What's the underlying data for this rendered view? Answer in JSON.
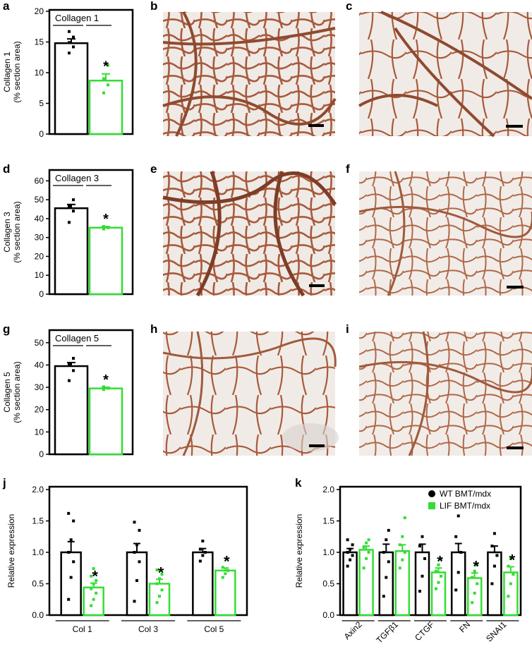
{
  "panels": {
    "a": "a",
    "b": "b",
    "c": "c",
    "d": "d",
    "e": "e",
    "f": "f",
    "g": "g",
    "h": "h",
    "i": "i",
    "j": "j",
    "k": "k"
  },
  "colors": {
    "wt": "#000000",
    "lif": "#33dd33",
    "tissue_bg": "#efeae6",
    "tissue_stain": "#a85a3b"
  },
  "chart_data": [
    {
      "id": "a",
      "type": "bar",
      "legend_text": "Collagen 1",
      "ylabel": "Collagen 1",
      "ylabel2": "(% section area)",
      "ylim": [
        0,
        20
      ],
      "yticks": [
        0,
        5,
        10,
        15,
        20
      ],
      "series": [
        {
          "group": "WT BMT/mdx",
          "value": 14.8,
          "sem": 0.7,
          "points": [
            13.2,
            14.2,
            14.9,
            15.8,
            16.7
          ],
          "star": false
        },
        {
          "group": "LIF BMT/mdx",
          "value": 8.7,
          "sem": 1.1,
          "points": [
            6.7,
            8.0,
            9.0,
            11.2
          ],
          "star": true
        }
      ]
    },
    {
      "id": "d",
      "type": "bar",
      "legend_text": "Collagen 3",
      "ylabel": "Collagen 3",
      "ylabel2": "(% section area)",
      "ylim": [
        0,
        65
      ],
      "yticks": [
        0,
        10,
        20,
        30,
        40,
        50,
        60
      ],
      "series": [
        {
          "group": "WT BMT/mdx",
          "value": 45.5,
          "sem": 2.0,
          "points": [
            38.0,
            44.0,
            46.5,
            50.0
          ],
          "star": false
        },
        {
          "group": "LIF BMT/mdx",
          "value": 35.2,
          "sem": 0.6,
          "points": [
            34.5,
            35.2,
            35.8
          ],
          "star": true
        }
      ]
    },
    {
      "id": "g",
      "type": "bar",
      "legend_text": "Collagen 5",
      "ylabel": "Collagen 5",
      "ylabel2": "(% section area)",
      "ylim": [
        0,
        55
      ],
      "yticks": [
        0,
        10,
        20,
        30,
        40,
        50
      ],
      "series": [
        {
          "group": "WT BMT/mdx",
          "value": 39.5,
          "sem": 1.6,
          "points": [
            33.0,
            37.5,
            40.5,
            43.0
          ],
          "star": false
        },
        {
          "group": "LIF BMT/mdx",
          "value": 29.5,
          "sem": 0.5,
          "points": [
            29.0,
            29.6,
            30.2
          ],
          "star": true
        }
      ]
    },
    {
      "id": "j",
      "type": "bar",
      "ylabel": "Relative expression",
      "ylim": [
        0,
        2.0
      ],
      "yticks": [
        "0.0",
        "0.5",
        "1.0",
        "1.5",
        "2.0"
      ],
      "categories": [
        "Col 1",
        "Col 3",
        "Col 5"
      ],
      "series": [
        {
          "name": "WT BMT/mdx",
          "values": [
            1.0,
            1.0,
            1.0
          ],
          "sem": [
            0.17,
            0.14,
            0.06
          ],
          "points": [
            [
              0.25,
              0.6,
              0.85,
              1.0,
              1.2,
              1.5,
              1.62
            ],
            [
              0.22,
              0.55,
              0.85,
              1.0,
              1.12,
              1.35,
              1.48
            ],
            [
              0.86,
              0.95,
              1.0,
              1.05,
              1.18
            ]
          ]
        },
        {
          "name": "LIF BMT/mdx",
          "values": [
            0.44,
            0.5,
            0.71
          ],
          "sem": [
            0.07,
            0.07,
            0.04
          ],
          "points": [
            [
              0.15,
              0.25,
              0.35,
              0.42,
              0.5,
              0.55,
              0.62,
              0.74
            ],
            [
              0.2,
              0.3,
              0.4,
              0.5,
              0.58,
              0.65,
              0.72
            ],
            [
              0.6,
              0.66,
              0.71,
              0.76
            ]
          ],
          "star": [
            true,
            true,
            true
          ]
        }
      ]
    },
    {
      "id": "k",
      "type": "bar",
      "ylabel": "Relative expression",
      "ylim": [
        0,
        2.0
      ],
      "yticks": [
        "0.0",
        "0.5",
        "1.0",
        "1.5",
        "2.0"
      ],
      "categories": [
        "Axin2",
        "TGFβ1",
        "CTGF",
        "FN",
        "SNAI1"
      ],
      "legend": [
        "WT BMT/mdx",
        "LIF BMT/mdx"
      ],
      "series": [
        {
          "name": "WT BMT/mdx",
          "values": [
            1.0,
            1.0,
            1.0,
            1.0,
            1.0
          ],
          "sem": [
            0.06,
            0.13,
            0.13,
            0.14,
            0.1
          ],
          "points": [
            [
              0.78,
              0.88,
              0.95,
              1.0,
              1.05,
              1.12,
              1.2
            ],
            [
              0.3,
              0.6,
              0.85,
              1.0,
              1.2,
              1.35
            ],
            [
              0.38,
              0.62,
              0.9,
              1.1,
              1.25
            ],
            [
              0.4,
              0.68,
              1.0,
              1.25,
              1.58
            ],
            [
              0.5,
              0.78,
              0.95,
              1.1,
              1.3
            ]
          ]
        },
        {
          "name": "LIF BMT/mdx",
          "values": [
            1.04,
            1.02,
            0.68,
            0.59,
            0.68
          ],
          "sem": [
            0.06,
            0.1,
            0.07,
            0.08,
            0.09
          ],
          "points": [
            [
              0.75,
              0.9,
              1.0,
              1.08,
              1.15,
              1.2
            ],
            [
              0.75,
              0.88,
              1.0,
              1.12,
              1.25,
              1.55
            ],
            [
              0.42,
              0.52,
              0.62,
              0.7,
              0.8,
              0.9
            ],
            [
              0.2,
              0.35,
              0.5,
              0.6,
              0.7,
              0.8
            ],
            [
              0.3,
              0.5,
              0.65,
              0.78,
              0.9
            ]
          ],
          "star": [
            false,
            false,
            true,
            true,
            true
          ]
        }
      ]
    }
  ]
}
